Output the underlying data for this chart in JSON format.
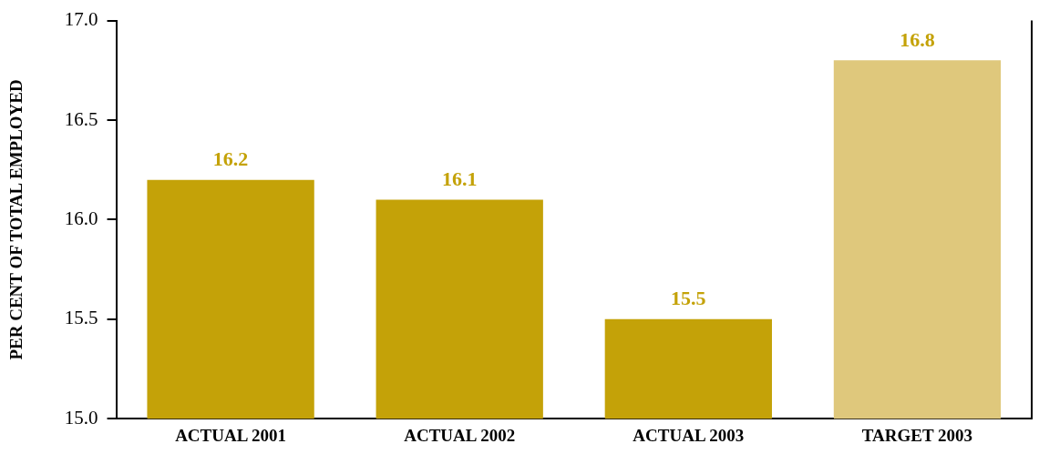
{
  "chart_data": {
    "type": "bar",
    "ylabel": "PER CENT OF TOTAL EMPLOYED",
    "categories": [
      "ACTUAL 2001",
      "ACTUAL 2002",
      "ACTUAL 2003",
      "TARGET 2003"
    ],
    "values": [
      16.2,
      16.1,
      15.5,
      16.8
    ],
    "colors": [
      "#c4a208",
      "#c4a208",
      "#c4a208",
      "#dfc87c"
    ],
    "ylim": [
      15,
      17
    ],
    "yticks": [
      {
        "value": 15,
        "label": "15.0"
      },
      {
        "value": 15.5,
        "label": "15.5"
      },
      {
        "value": 16,
        "label": "16.0"
      },
      {
        "value": 16.5,
        "label": "16.5"
      },
      {
        "value": 17,
        "label": "17.0"
      }
    ],
    "grid": false,
    "data_labels": true,
    "legend": false
  }
}
